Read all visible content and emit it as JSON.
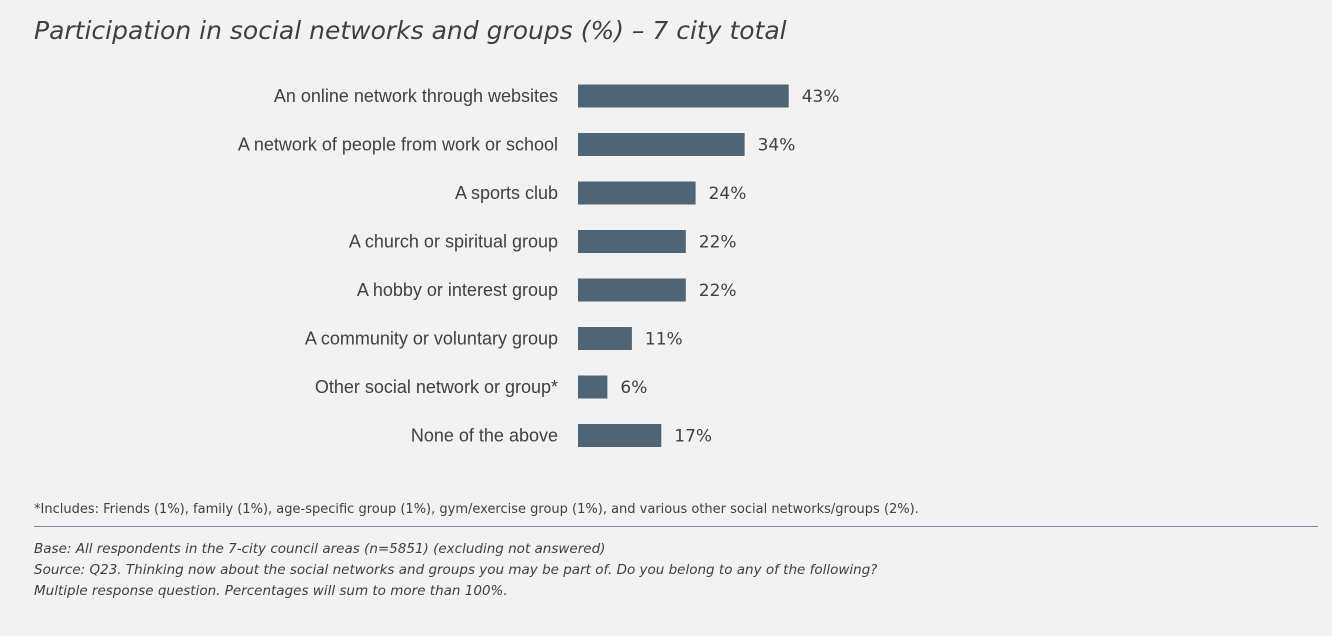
{
  "title": "Participation in social networks and groups (%) – 7 city total",
  "chart_data": {
    "type": "bar",
    "orientation": "horizontal",
    "categories": [
      "An online network through websites",
      "A network of people from work or school",
      "A sports club",
      "A church or spiritual group",
      "A hobby or interest group",
      "A community or voluntary group",
      "Other social network or group*",
      "None of the above"
    ],
    "values": [
      43,
      34,
      24,
      22,
      22,
      11,
      6,
      17
    ],
    "value_labels": [
      "43%",
      "34%",
      "24%",
      "22%",
      "22%",
      "11%",
      "6%",
      "17%"
    ],
    "unit": "%",
    "bar_color": "#4f6575",
    "xlim": [
      0,
      100
    ],
    "grid": false,
    "legend": "none"
  },
  "footnote": "*Includes: Friends (1%), family (1%), age-specific group (1%), gym/exercise group (1%), and various other social networks/groups (2%).",
  "base_lines": [
    "Base: All respondents in the 7-city council areas (n=5851)  (excluding not answered)",
    "Source: Q23. Thinking now about the social networks and groups you may be part of. Do you belong to any of the following?",
    "Multiple response question. Percentages will sum to more than 100%."
  ]
}
